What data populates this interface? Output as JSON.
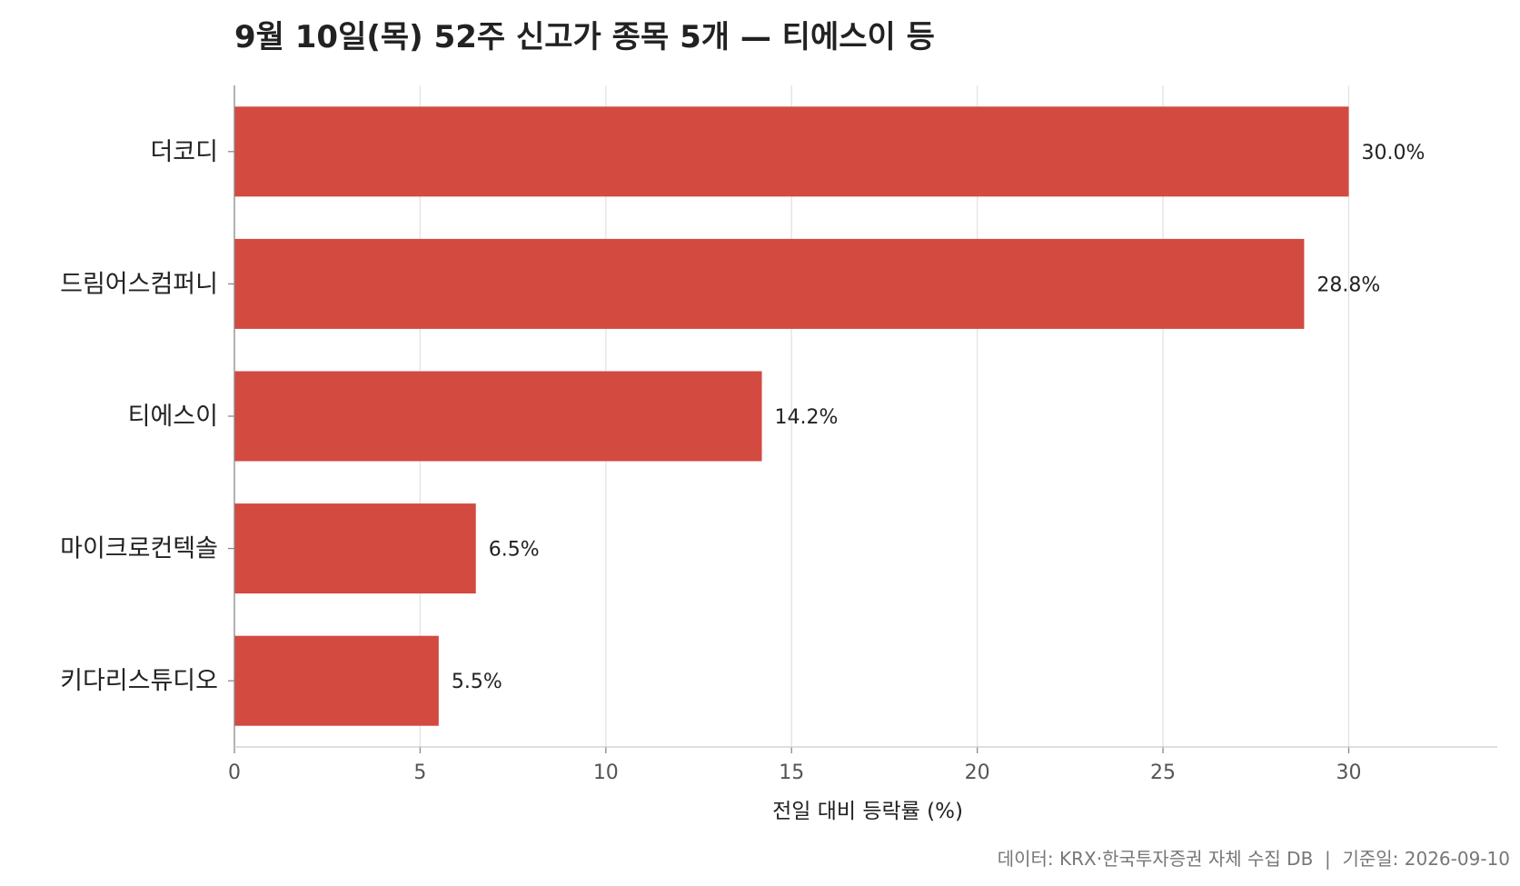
{
  "chart_data": {
    "type": "bar",
    "orientation": "horizontal",
    "title": "9월 10일(목) 52주 신고가 종목 5개 — 티에스이 등",
    "xlabel": "전일 대비 등락률 (%)",
    "ylabel": "",
    "xlim": [
      0,
      34
    ],
    "xticks": [
      0,
      5,
      10,
      15,
      20,
      25,
      30
    ],
    "grid": "vertical",
    "categories": [
      "더코디",
      "드림어스컴퍼니",
      "티에스이",
      "마이크로컨텍솔",
      "키다리스튜디오"
    ],
    "values": [
      30.0,
      28.8,
      14.2,
      6.5,
      5.5
    ],
    "value_labels": [
      "30.0%",
      "28.8%",
      "14.2%",
      "6.5%",
      "5.5%"
    ],
    "bar_color": "#D24A40",
    "footer": "데이터: KRX·한국투자증권 자체 수집 DB  |  기준일: 2026-09-10"
  }
}
